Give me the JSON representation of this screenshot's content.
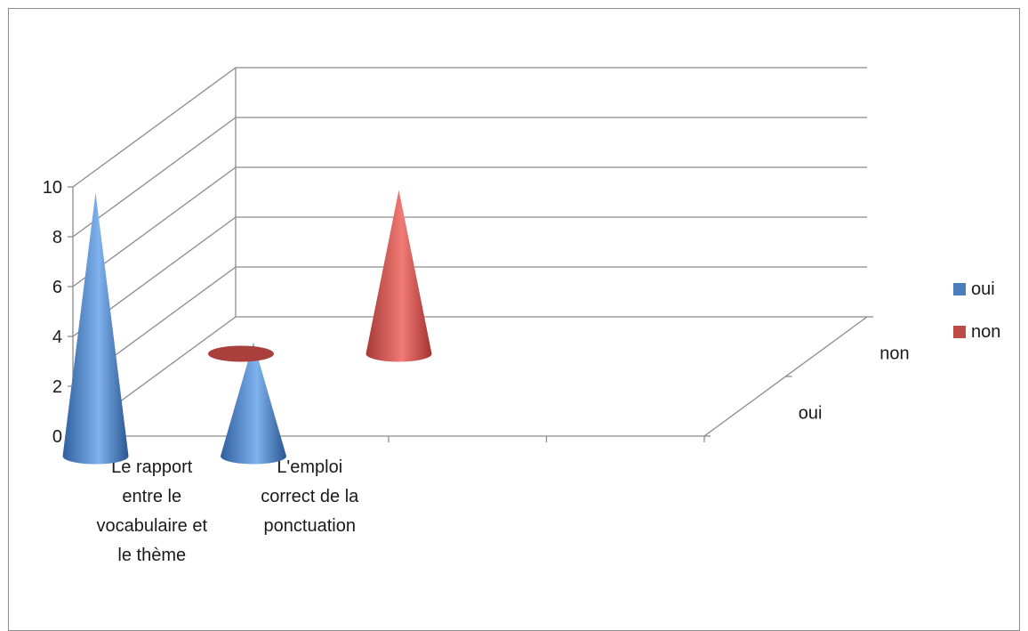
{
  "chart_data": {
    "type": "bar",
    "shape": "3d-cone",
    "categories": [
      "Le rapport entre le vocabulaire et le thème",
      "L'emploi correct de la ponctuation",
      "",
      ""
    ],
    "category_lines": [
      [
        "Le rapport",
        "entre le",
        "vocabulaire et",
        "le thème"
      ],
      [
        "L'emploi",
        "correct de la",
        "ponctuation"
      ],
      [],
      []
    ],
    "series": [
      {
        "name": "oui",
        "values": [
          10,
          4,
          null,
          null
        ],
        "color": "#4a7ebb"
      },
      {
        "name": "non",
        "values": [
          0,
          6,
          null,
          null
        ],
        "color": "#be4b48"
      }
    ],
    "ylim": [
      0,
      10
    ],
    "yticks": [
      "0",
      "2",
      "4",
      "6",
      "8",
      "10"
    ],
    "depth_labels": [
      "oui",
      "non"
    ],
    "legend": {
      "position": "right",
      "items": [
        "oui",
        "non"
      ]
    },
    "grid": true
  }
}
